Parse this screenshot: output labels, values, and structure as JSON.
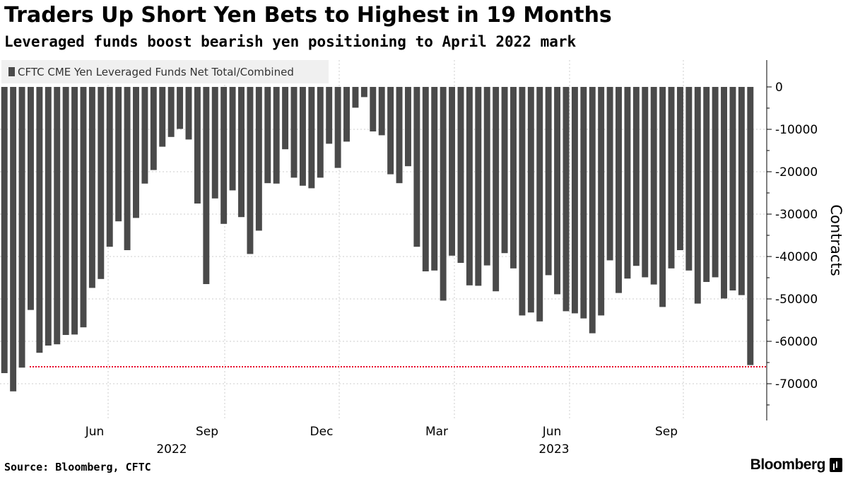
{
  "title": "Traders Up Short Yen Bets to Highest in 19 Months",
  "subtitle": "Leveraged funds boost bearish yen positioning to April 2022 mark",
  "source": "Source: Bloomberg, CFTC",
  "brand": "Bloomberg",
  "colors": {
    "bar": "#4a4a4a",
    "reference_line": "#e8002a",
    "grid": "#cccccc",
    "legend_bg": "#f0f0f0"
  },
  "chart_data": {
    "type": "bar",
    "legend": [
      "CFTC CME Yen Leveraged Funds Net Total/Combined"
    ],
    "ylabel": "Contracts",
    "ylim": [
      -78000,
      5000
    ],
    "yticks": [
      0,
      -10000,
      -20000,
      -30000,
      -40000,
      -50000,
      -60000,
      -70000
    ],
    "ytick_labels": [
      "0",
      "-10000",
      "-20000",
      "-30000",
      "-40000",
      "-50000",
      "-60000",
      "-70000"
    ],
    "x_tick_labels": [
      "Jun",
      "Sep",
      "Dec",
      "Mar",
      "Jun",
      "Sep"
    ],
    "x_year_labels": [
      "2022",
      "2023"
    ],
    "reference_line": {
      "value": -66000,
      "style": "dotted"
    },
    "legend_placement": "top-left",
    "grid": "dotted",
    "series": [
      {
        "name": "CFTC CME Yen Leveraged Funds Net Total/Combined",
        "values": [
          -67500,
          -71800,
          -66200,
          -52600,
          -62700,
          -61000,
          -60700,
          -58500,
          -58400,
          -56700,
          -47400,
          -45300,
          -37700,
          -31700,
          -38500,
          -30900,
          -22800,
          -19600,
          -14100,
          -11800,
          -9900,
          -12400,
          -27500,
          -46500,
          -26300,
          -32300,
          -24400,
          -30700,
          -39400,
          -33900,
          -22700,
          -22800,
          -14700,
          -21400,
          -23300,
          -23900,
          -21400,
          -13400,
          -19100,
          -12900,
          -4900,
          -2400,
          -10500,
          -11400,
          -20600,
          -22700,
          -18700,
          -37700,
          -43500,
          -43300,
          -50400,
          -39800,
          -41500,
          -46800,
          -46900,
          -42100,
          -48200,
          -39200,
          -42800,
          -53900,
          -53200,
          -55300,
          -44400,
          -48900,
          -52900,
          -53400,
          -54600,
          -58100,
          -53900,
          -40900,
          -48600,
          -45200,
          -42200,
          -44900,
          -46600,
          -51900,
          -42800,
          -38500,
          -43300,
          -51100,
          -46000,
          -44900,
          -49900,
          -48000,
          -49100,
          -65600
        ]
      }
    ]
  }
}
